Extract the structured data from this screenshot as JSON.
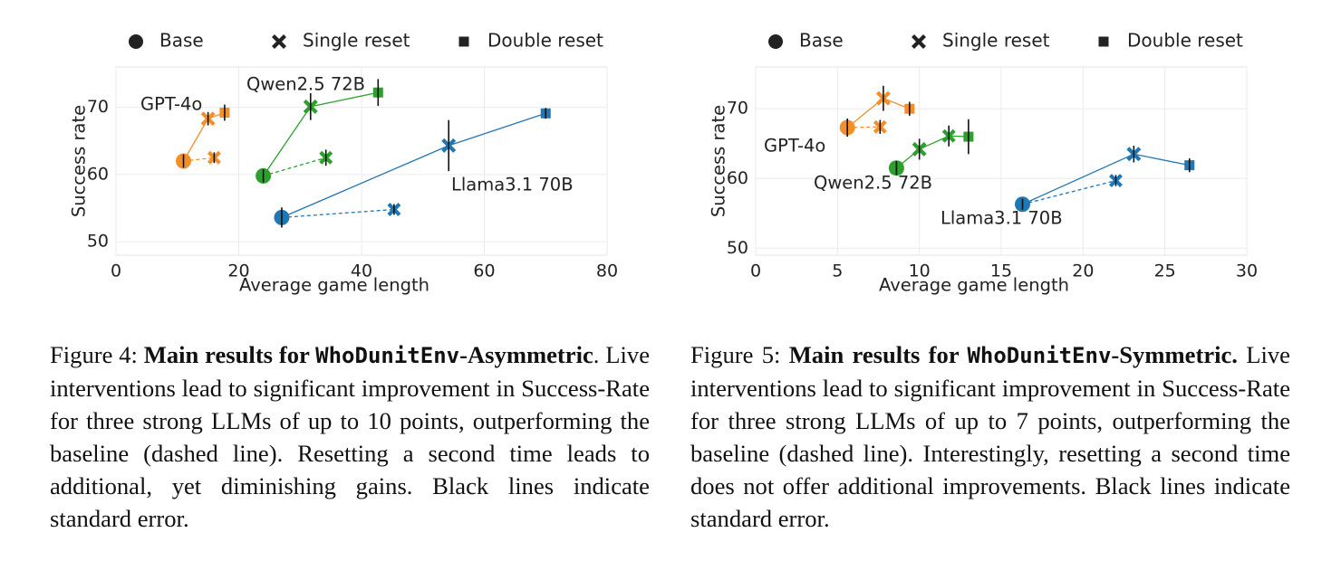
{
  "chart_data": [
    {
      "type": "scatter",
      "title": "",
      "xlabel": "Average game length",
      "ylabel": "Success rate",
      "xlim": [
        0,
        80
      ],
      "ylim": [
        48,
        76
      ],
      "xticks": [
        0,
        20,
        40,
        60,
        80
      ],
      "yticks": [
        50,
        60,
        70
      ],
      "grid": true,
      "legend": {
        "placement": "top",
        "entries": [
          {
            "label": "Base",
            "marker": "circle"
          },
          {
            "label": "Single reset",
            "marker": "x"
          },
          {
            "label": "Double reset",
            "marker": "square"
          }
        ]
      },
      "series": [
        {
          "name": "GPT-4o",
          "color": "#f28e2b",
          "base": {
            "x": 11,
            "y": 62,
            "se": 1.0
          },
          "baseline_single": {
            "x": 16,
            "y": 62.5,
            "se": 0.8
          },
          "single_reset": {
            "x": 15,
            "y": 68.3,
            "se": 1.0
          },
          "double_reset": {
            "x": 17.7,
            "y": 69.2,
            "se": 1.2
          }
        },
        {
          "name": "Qwen2.5 72B",
          "color": "#2ca02c",
          "base": {
            "x": 24,
            "y": 59.8,
            "se": 1.0
          },
          "baseline_single": {
            "x": 34.2,
            "y": 62.5,
            "se": 1.2
          },
          "single_reset": {
            "x": 31.7,
            "y": 70.1,
            "se": 2.0
          },
          "double_reset": {
            "x": 42.7,
            "y": 72.2,
            "se": 2.0
          }
        },
        {
          "name": "Llama3.1 70B",
          "color": "#1f77b4",
          "base": {
            "x": 27,
            "y": 53.6,
            "se": 1.5
          },
          "baseline_single": {
            "x": 45.3,
            "y": 54.8,
            "se": 0.8
          },
          "single_reset": {
            "x": 54.2,
            "y": 64.3,
            "se": 3.8
          },
          "double_reset": {
            "x": 70,
            "y": 69.1,
            "se": 0.8
          }
        }
      ]
    },
    {
      "type": "scatter",
      "title": "",
      "xlabel": "Average game length",
      "ylabel": "Success rate",
      "xlim": [
        0,
        30
      ],
      "ylim": [
        49,
        76
      ],
      "xticks": [
        0,
        5,
        10,
        15,
        20,
        25,
        30
      ],
      "yticks": [
        50,
        60,
        70
      ],
      "grid": true,
      "legend": {
        "placement": "top",
        "entries": [
          {
            "label": "Base",
            "marker": "circle"
          },
          {
            "label": "Single reset",
            "marker": "x"
          },
          {
            "label": "Double reset",
            "marker": "square"
          }
        ]
      },
      "series": [
        {
          "name": "GPT-4o",
          "color": "#f28e2b",
          "base": {
            "x": 5.6,
            "y": 67.3,
            "se": 1.3
          },
          "baseline_single": {
            "x": 7.6,
            "y": 67.4,
            "se": 1.0
          },
          "single_reset": {
            "x": 7.8,
            "y": 71.5,
            "se": 1.8
          },
          "double_reset": {
            "x": 9.4,
            "y": 70,
            "se": 1.0
          }
        },
        {
          "name": "Qwen2.5 72B",
          "color": "#2ca02c",
          "base": {
            "x": 8.6,
            "y": 61.5,
            "se": 1.0
          },
          "baseline_single": {
            "x": 8.6,
            "y": 61.5,
            "se": 0.8
          },
          "single_reset": {
            "x": 10,
            "y": 64.2,
            "se": 1.5
          },
          "double_reset": {
            "x": 13,
            "y": 66,
            "se": 2.5
          },
          "extra_point": {
            "x": 11.8,
            "y": 66.1,
            "se": 1.5
          }
        },
        {
          "name": "Llama3.1 70B",
          "color": "#1f77b4",
          "base": {
            "x": 16.3,
            "y": 56.3,
            "se": 0.8
          },
          "baseline_single": {
            "x": 22,
            "y": 59.7,
            "se": 0.8
          },
          "single_reset": {
            "x": 23.1,
            "y": 63.5,
            "se": 1.2
          },
          "double_reset": {
            "x": 26.5,
            "y": 61.9,
            "se": 1.0
          }
        }
      ]
    }
  ],
  "captions": [
    {
      "figure": "Figure 4:",
      "bold_pre": "Main results for",
      "env": "WhoDunitEnv",
      "bold_post": "-Asymmetric",
      "end_punct": ".",
      "body": "Live interventions lead to significant improvement in Success-Rate for three strong LLMs of up to 10 points, outperforming the baseline (dashed line). Resetting a second time leads to additional, yet diminishing gains. Black lines indicate standard error."
    },
    {
      "figure": "Figure 5:",
      "bold_pre": "Main results for",
      "env": "WhoDunitEnv",
      "bold_post": "-Symmetric.",
      "end_punct": "",
      "body": "Live interventions lead to significant improvement in Success-Rate for three strong LLMs of up to 7 points, outperforming the baseline (dashed line). Interestingly, resetting a second time does not offer additional improvements. Black lines indicate standard error."
    }
  ]
}
